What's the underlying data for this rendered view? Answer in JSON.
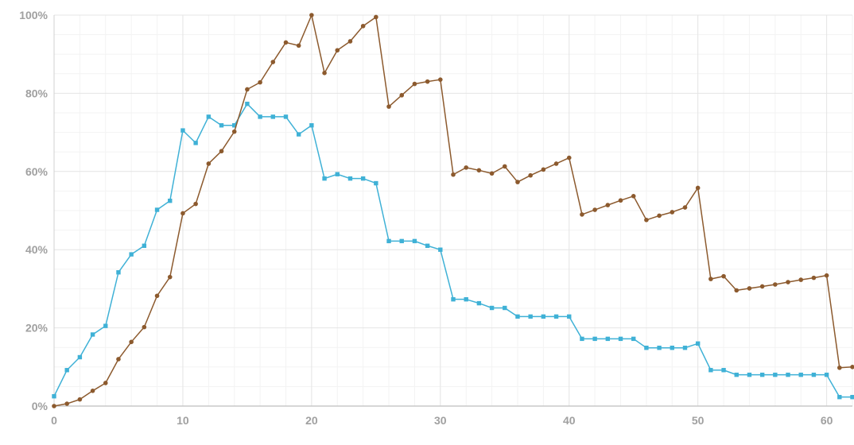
{
  "chart_data": {
    "type": "line",
    "title": "",
    "xlabel": "",
    "ylabel": "",
    "xlim": [
      0,
      62
    ],
    "ylim": [
      0,
      100
    ],
    "x_ticks": [
      0,
      10,
      20,
      30,
      40,
      50,
      60
    ],
    "y_ticks": [
      0,
      20,
      40,
      60,
      80,
      100
    ],
    "x_tick_labels": [
      "0",
      "10",
      "20",
      "30",
      "40",
      "50",
      "60"
    ],
    "y_tick_labels": [
      "0%",
      "20%",
      "40%",
      "60%",
      "80%",
      "100%"
    ],
    "grid": true,
    "legend": "none",
    "x": [
      0,
      1,
      2,
      3,
      4,
      5,
      6,
      7,
      8,
      9,
      10,
      11,
      12,
      13,
      14,
      15,
      16,
      17,
      18,
      19,
      20,
      21,
      22,
      23,
      24,
      25,
      26,
      27,
      28,
      29,
      30,
      31,
      32,
      33,
      34,
      35,
      36,
      37,
      38,
      39,
      40,
      41,
      42,
      43,
      44,
      45,
      46,
      47,
      48,
      49,
      50,
      51,
      52,
      53,
      54,
      55,
      56,
      57,
      58,
      59,
      60,
      61,
      62
    ],
    "series": [
      {
        "color": "#3fb1d6",
        "marker": "square",
        "values": [
          2.5,
          9.2,
          12.5,
          18.3,
          20.5,
          34.2,
          38.8,
          41.0,
          50.2,
          52.5,
          70.5,
          67.3,
          74.0,
          71.8,
          71.8,
          77.3,
          74.0,
          74.0,
          74.0,
          69.5,
          71.8,
          58.2,
          59.3,
          58.2,
          58.2,
          57.0,
          42.2,
          42.2,
          42.2,
          41.0,
          40.0,
          27.3,
          27.3,
          26.3,
          25.1,
          25.1,
          22.9,
          22.9,
          22.9,
          22.9,
          22.9,
          17.2,
          17.2,
          17.2,
          17.2,
          17.2,
          14.9,
          14.9,
          14.9,
          14.9,
          16.0,
          9.2,
          9.2,
          8.0,
          8.0,
          8.0,
          8.0,
          8.0,
          8.0,
          8.0,
          8.0,
          2.3,
          2.3
        ]
      },
      {
        "color": "#8c5a2e",
        "marker": "circle",
        "values": [
          0.0,
          0.6,
          1.7,
          3.9,
          5.9,
          12.0,
          16.4,
          20.2,
          28.2,
          33.0,
          49.3,
          51.7,
          62.0,
          65.2,
          70.2,
          81.0,
          82.8,
          88.0,
          93.0,
          92.2,
          100.0,
          85.2,
          91.0,
          93.3,
          97.2,
          99.5,
          76.6,
          79.5,
          82.4,
          83.0,
          83.5,
          59.2,
          61.0,
          60.3,
          59.5,
          61.3,
          57.3,
          59.0,
          60.5,
          62.0,
          63.5,
          49.0,
          50.2,
          51.4,
          52.6,
          53.7,
          47.6,
          48.7,
          49.6,
          50.8,
          55.8,
          32.5,
          33.2,
          29.6,
          30.1,
          30.6,
          31.1,
          31.7,
          32.3,
          32.8,
          33.4,
          9.8,
          10.0
        ]
      }
    ]
  }
}
